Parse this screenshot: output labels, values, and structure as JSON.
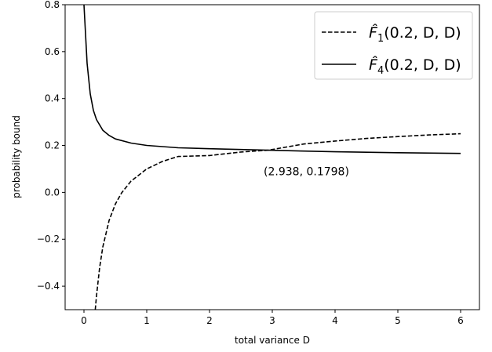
{
  "chart_data": {
    "type": "line",
    "xlabel": "total variance D",
    "ylabel": "probability bound",
    "xlim": [
      -0.3,
      6.3
    ],
    "ylim": [
      -0.5,
      0.8
    ],
    "xticks": [
      0,
      1,
      2,
      3,
      4,
      5,
      6
    ],
    "xtick_labels": [
      "0",
      "1",
      "2",
      "3",
      "4",
      "5",
      "6"
    ],
    "yticks": [
      -0.4,
      -0.2,
      0.0,
      0.2,
      0.4,
      0.6,
      0.8
    ],
    "ytick_labels": [
      "−0.4",
      "−0.2",
      "0.0",
      "0.2",
      "0.4",
      "0.6",
      "0.8"
    ],
    "grid": false,
    "legend_position": "top-right",
    "series": [
      {
        "name": "F̂1(0.2, D, D)",
        "legend_main": "F̂",
        "legend_sub": "1",
        "legend_args": "(0.2, D, D)",
        "style": "dashed",
        "color": "#000000",
        "x": [
          0.18,
          0.2,
          0.25,
          0.3,
          0.4,
          0.5,
          0.6,
          0.75,
          1.0,
          1.25,
          1.5,
          2.0,
          2.5,
          2.938,
          3.5,
          4.0,
          4.5,
          5.0,
          5.5,
          6.0
        ],
        "y": [
          -0.5,
          -0.44,
          -0.32,
          -0.233,
          -0.12,
          -0.05,
          -0.002,
          0.048,
          0.1,
          0.132,
          0.153,
          0.157,
          0.172,
          0.1798,
          0.206,
          0.219,
          0.23,
          0.238,
          0.245,
          0.25
        ]
      },
      {
        "name": "F̂4(0.2, D, D)",
        "legend_main": "F̂",
        "legend_sub": "4",
        "legend_args": "(0.2, D, D)",
        "style": "solid",
        "color": "#000000",
        "x": [
          0.0,
          0.02,
          0.05,
          0.1,
          0.15,
          0.2,
          0.3,
          0.4,
          0.5,
          0.75,
          1.0,
          1.5,
          2.0,
          2.938,
          3.5,
          4.0,
          5.0,
          6.0
        ],
        "y": [
          0.8,
          0.7,
          0.55,
          0.42,
          0.35,
          0.31,
          0.265,
          0.243,
          0.228,
          0.21,
          0.2,
          0.19,
          0.186,
          0.1798,
          0.176,
          0.173,
          0.169,
          0.166
        ]
      }
    ],
    "annotations": [
      {
        "text": "(2.938, 0.1798)",
        "x": 2.938,
        "y": 0.1798
      }
    ]
  }
}
